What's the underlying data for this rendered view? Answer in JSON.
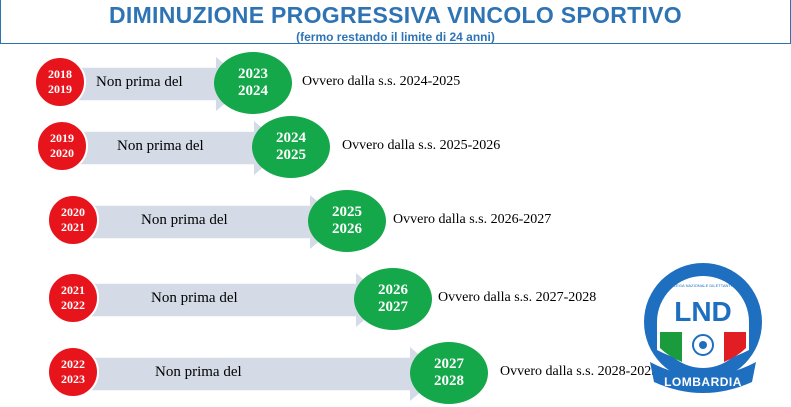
{
  "header": {
    "title": "DIMINUZIONE PROGRESSIVA VINCOLO SPORTIVO",
    "subtitle": "(fermo restando il limite di 24 anni)"
  },
  "rows": [
    {
      "from_a": "2018",
      "from_b": "2019",
      "label": "Non prima del",
      "to_a": "2023",
      "to_b": "2024",
      "note": "Ovvero dalla s.s. 2024-2025"
    },
    {
      "from_a": "2019",
      "from_b": "2020",
      "label": "Non prima del",
      "to_a": "2024",
      "to_b": "2025",
      "note": "Ovvero dalla s.s. 2025-2026"
    },
    {
      "from_a": "2020",
      "from_b": "2021",
      "label": "Non prima del",
      "to_a": "2025",
      "to_b": "2026",
      "note": "Ovvero dalla s.s. 2026-2027"
    },
    {
      "from_a": "2021",
      "from_b": "2022",
      "label": "Non prima del",
      "to_a": "2026",
      "to_b": "2027",
      "note": "Ovvero dalla s.s. 2027-2028"
    },
    {
      "from_a": "2022",
      "from_b": "2023",
      "label": "Non prima del",
      "to_a": "2027",
      "to_b": "2028",
      "note": "Ovvero dalla s.s. 2028-2029"
    }
  ],
  "logo": {
    "text_main": "LND",
    "text_bottom": "LOMBARDIA",
    "text_ring": "LEGA NAZIONALE DILETTANTI"
  },
  "colors": {
    "title": "#2e74b5",
    "red_circle": "#e8141c",
    "green_circle": "#14a84a",
    "arrow": "#d4dbe7",
    "logo_blue": "#1f6fc0"
  }
}
